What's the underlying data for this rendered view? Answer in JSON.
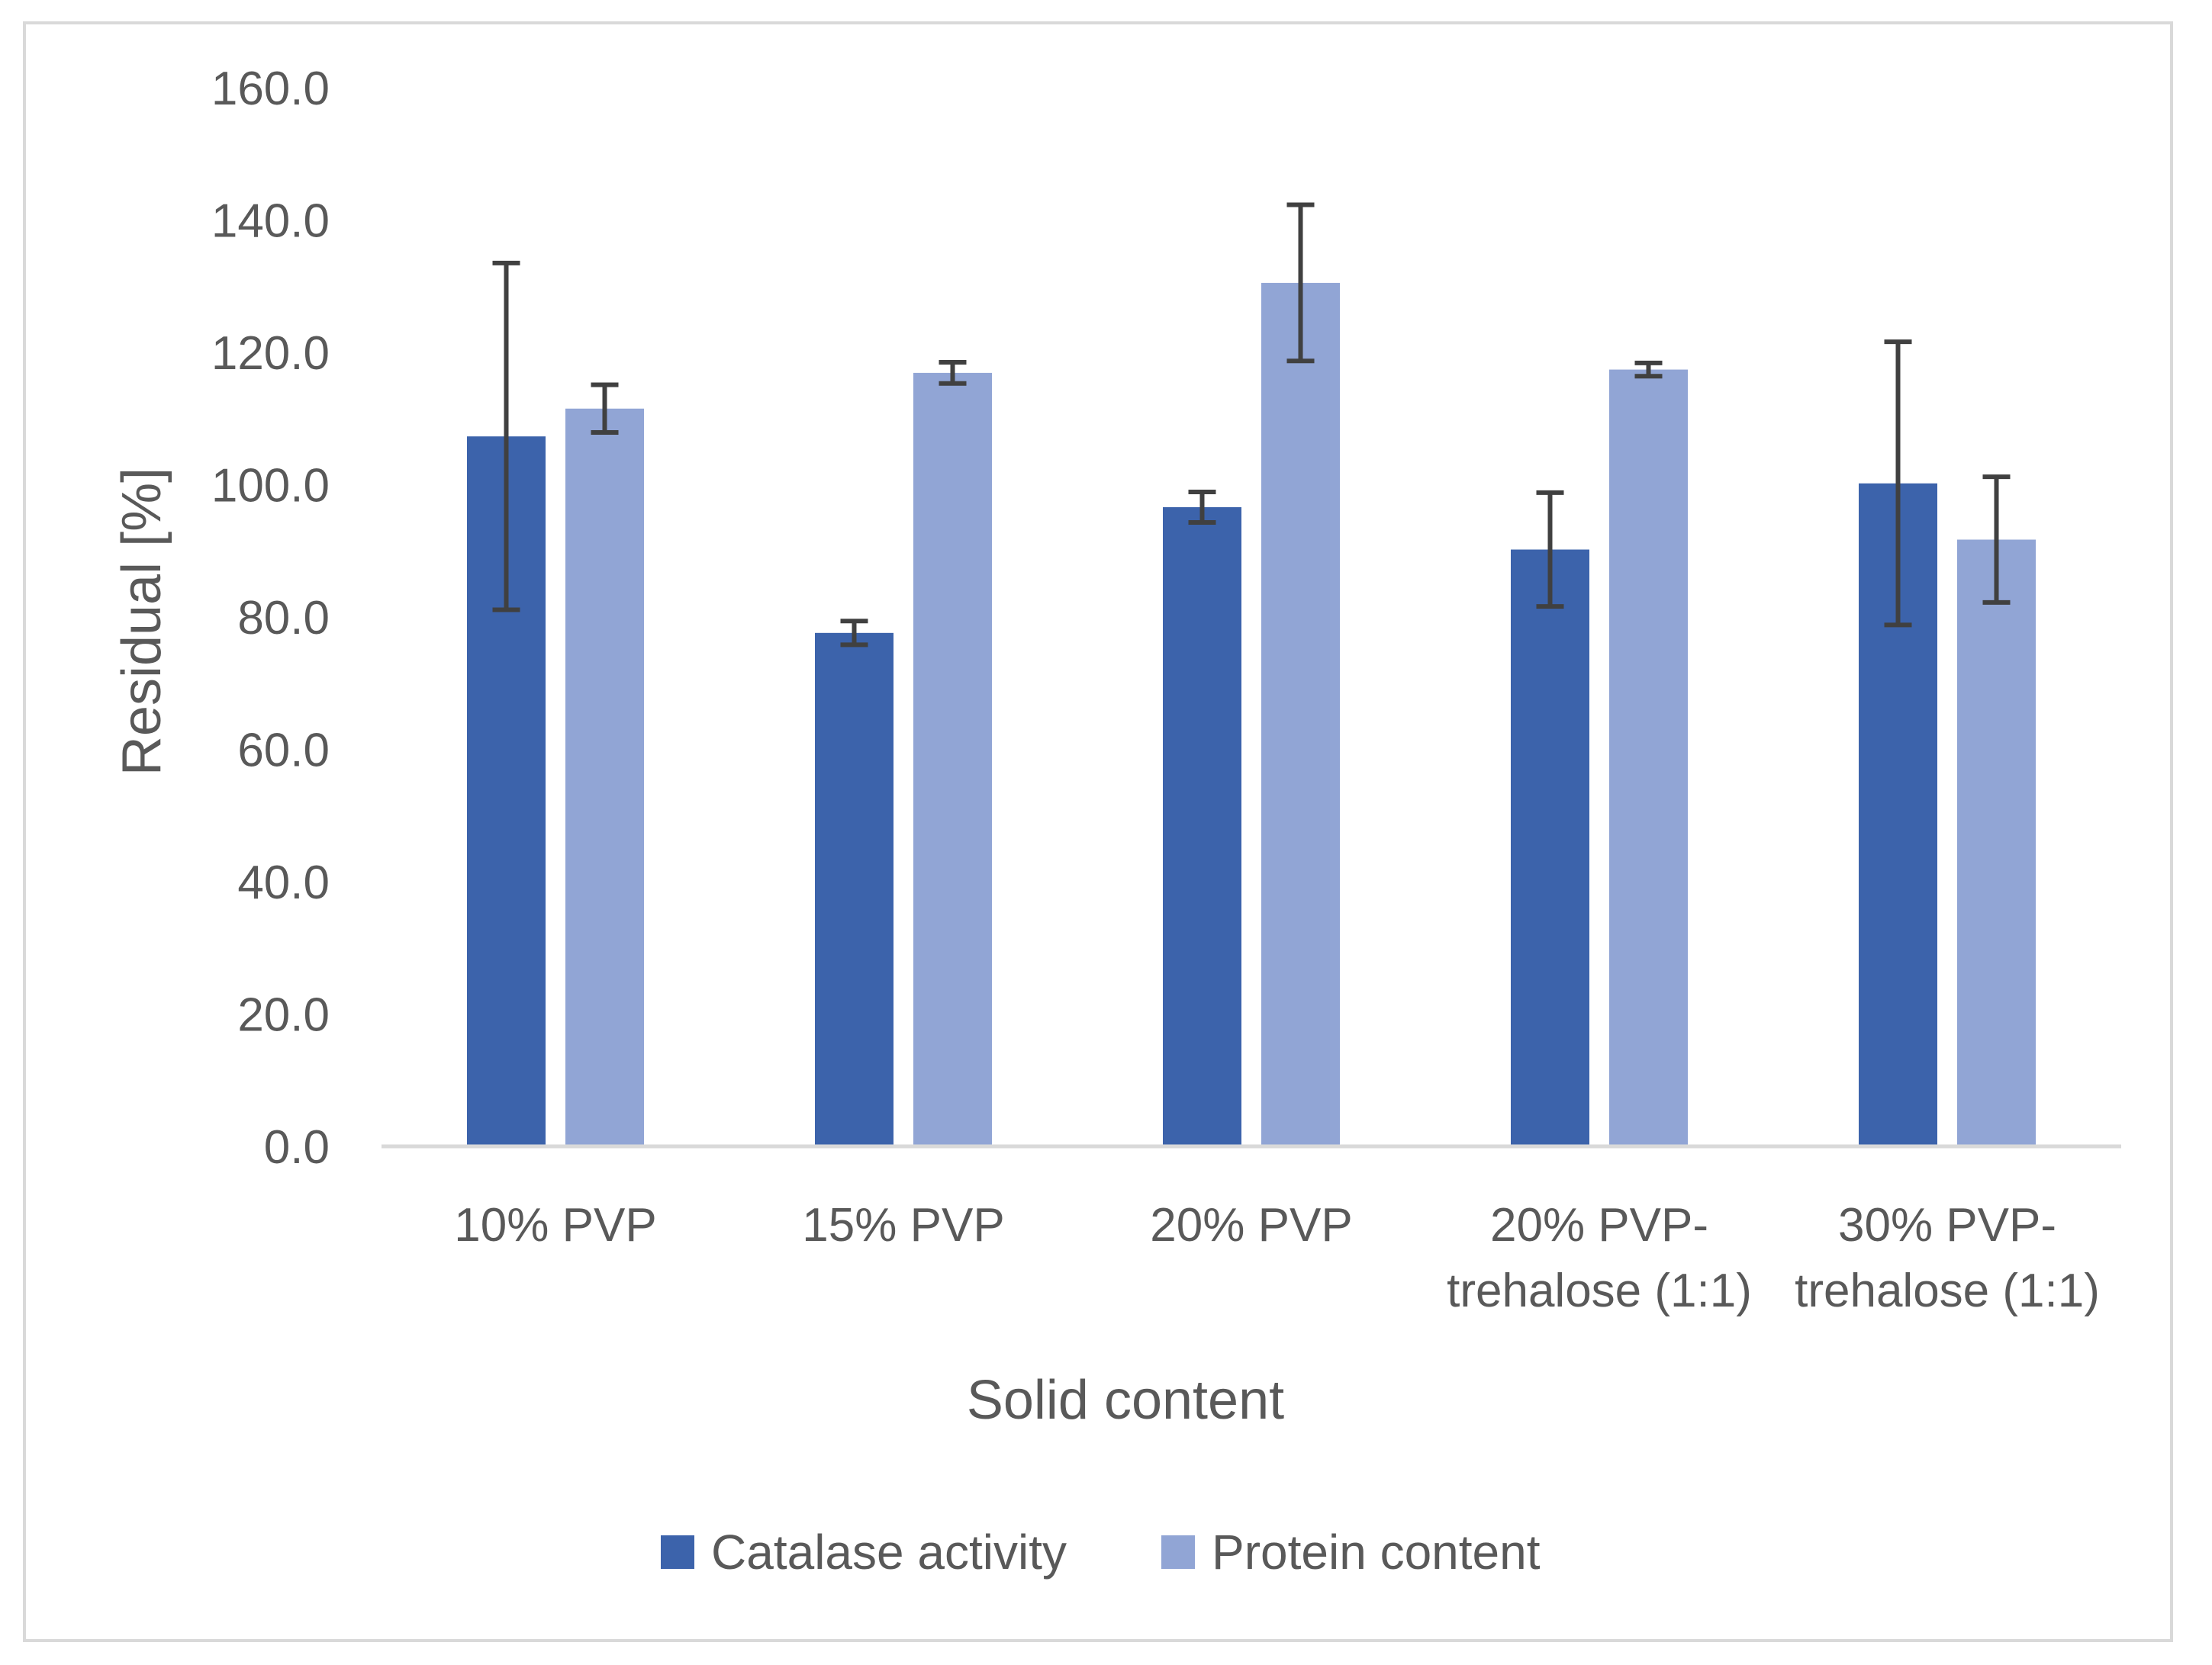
{
  "chart_data": {
    "type": "bar",
    "title": "",
    "xlabel": "Solid content",
    "ylabel": "Residual [%]",
    "ylim": [
      0,
      160
    ],
    "yticks": [
      "0.0",
      "20.0",
      "40.0",
      "60.0",
      "80.0",
      "100.0",
      "120.0",
      "140.0",
      "160.0"
    ],
    "grid": false,
    "legend_position": "bottom",
    "categories": [
      [
        "10% PVP"
      ],
      [
        "15% PVP"
      ],
      [
        "20% PVP"
      ],
      [
        "20% PVP-",
        "trehalose (1:1)"
      ],
      [
        "30% PVP-",
        "trehalose (1:1)"
      ]
    ],
    "series": [
      {
        "name": "Catalase activity",
        "color": "#3c63ab",
        "values": [
          107.3,
          77.6,
          96.6,
          90.2,
          100.2
        ],
        "errors": [
          26.2,
          1.8,
          2.3,
          8.6,
          21.4
        ]
      },
      {
        "name": "Protein content",
        "color": "#91a5d5",
        "values": [
          111.5,
          116.9,
          130.5,
          117.4,
          91.7
        ],
        "errors": [
          3.6,
          1.6,
          11.8,
          1.0,
          9.5
        ]
      }
    ],
    "errorbar_color": "#404040",
    "axis_color": "#d9d9d9"
  }
}
